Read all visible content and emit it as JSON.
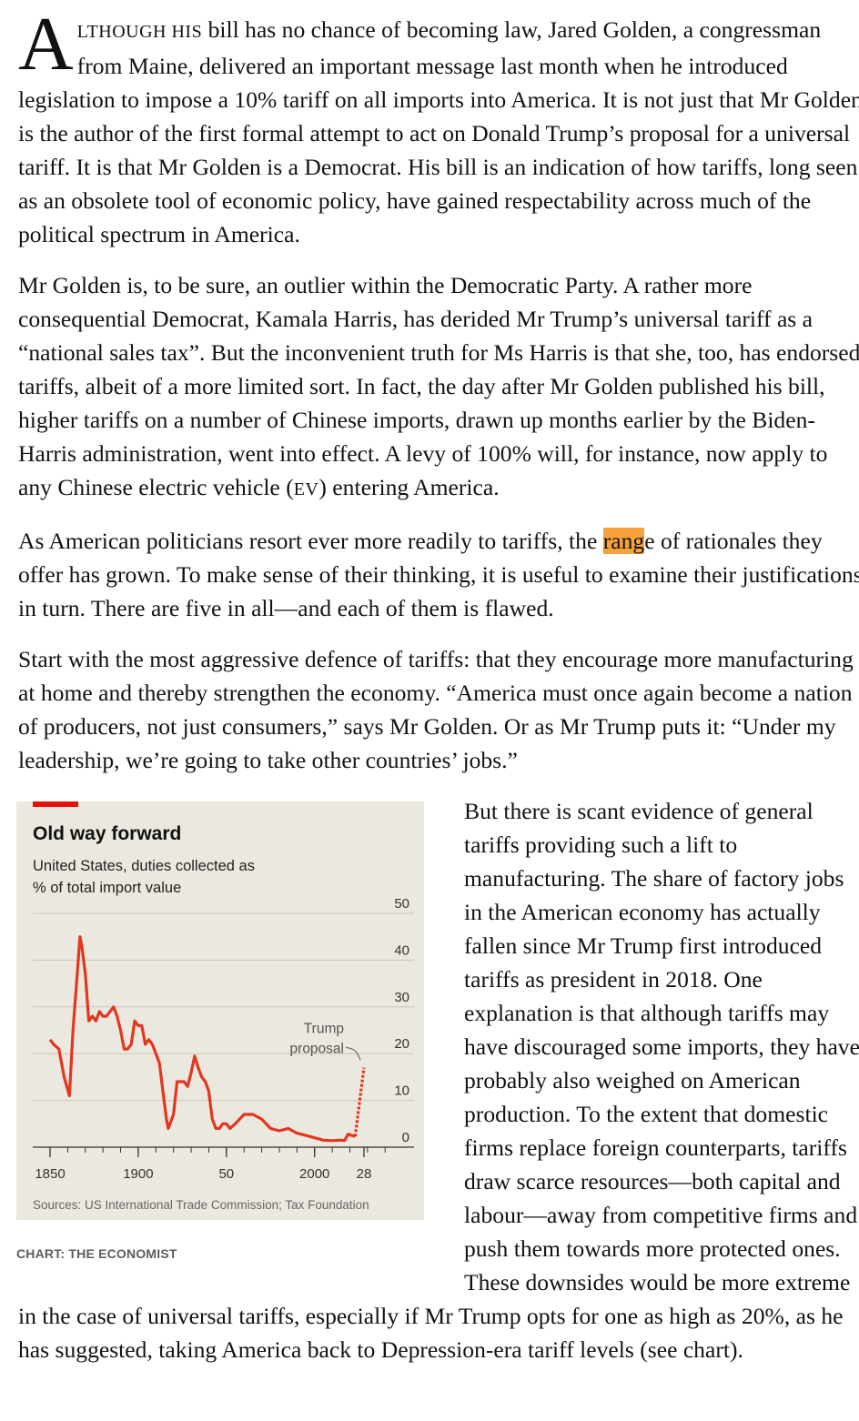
{
  "article": {
    "paragraphs": [
      {
        "parts": [
          {
            "text": "A",
            "style": "dropcap"
          },
          {
            "text": "LTHOUGH HIS",
            "style": "smallcaps"
          },
          {
            "text": " bill has no chance of becoming law, Jared Golden, a congressman from Maine, delivered an important message last month when he introduced legislation to impose a 10% tariff on all imports into America. It is not just that Mr Golden is the author of the first formal attempt to act on Donald Trump’s proposal for a universal tariff. It is that Mr Golden is a Democrat. His bill is an indication of how tariffs, long seen as an obsolete tool of economic policy, have gained respectability across much of the political spectrum in America."
          }
        ]
      },
      {
        "parts": [
          {
            "text": "Mr Golden is, to be sure, an outlier within the Democratic Party. A rather more consequential Democrat, Kamala Harris, has derided Mr Trump’s universal tariff as a “national sales tax”. But the inconvenient truth for Ms Harris is that she, too, has endorsed tariffs, albeit of a more limited sort. In fact, the day after Mr Golden published his bill, higher tariffs on a number of Chinese imports, drawn up months earlier by the Biden-Harris administration, went into effect. A levy of 100% will, for instance, now apply to any Chinese electric vehicle ("
          },
          {
            "text": "EV",
            "style": "smallcaps"
          },
          {
            "text": ") entering America."
          }
        ]
      },
      {
        "parts": [
          {
            "text": "As American politicians resort ever more readily to tariffs, the "
          },
          {
            "text": "rang",
            "style": "highlight"
          },
          {
            "text": "e of rationales they offer has grown. To make sense of their thinking, it is useful to examine their justifications in turn. There are five in all—and each of them is flawed."
          }
        ]
      },
      {
        "parts": [
          {
            "text": "Start with the most aggressive defence of tariffs: that they encourage more manufacturing at home and thereby strengthen the economy. “America must once again become a nation of producers, not just consumers,” says Mr Golden. Or as Mr Trump puts it: “Under my leadership, we’re going to take other countries’ jobs.”"
          }
        ]
      },
      {
        "parts": [
          {
            "text": "But there is scant evidence of general tariffs providing such a lift to manufacturing. The share of factory jobs in the American economy has actually fallen since Mr Trump first introduced tariffs as president in 2018. One explanation is that although tariffs may have discouraged some imports, they have probably also weighed on American production. To the extent that domestic firms replace foreign counterparts, tariffs draw scarce resources—both capital and labour—away from competitive firms and push them towards more protected ones. These downsides would be more extreme in the case of universal tariffs, especially if Mr Trump opts for one as high as 20%, as he has suggested, taking America back to Depression-era tariff levels (see chart)."
          }
        ]
      }
    ],
    "figure_before_paragraph": 4
  },
  "chart_data": {
    "type": "line",
    "title": "Old way forward",
    "subtitle": [
      "United States, duties collected as",
      "% of total import value"
    ],
    "source": "Sources: US International Trade Commission; Tax Foundation",
    "series": [
      {
        "color": "#e3361f",
        "dashed": false,
        "x": [
          1850,
          1852,
          1855,
          1858,
          1861,
          1863,
          1865,
          1867,
          1868,
          1870,
          1872,
          1874,
          1876,
          1878,
          1880,
          1882,
          1884,
          1886,
          1888,
          1890,
          1892,
          1894,
          1896,
          1898,
          1900,
          1902,
          1904,
          1906,
          1908,
          1910,
          1912,
          1914,
          1916,
          1917,
          1918,
          1920,
          1922,
          1924,
          1926,
          1928,
          1930,
          1932,
          1934,
          1936,
          1938,
          1940,
          1942,
          1944,
          1946,
          1948,
          1950,
          1952,
          1955,
          1960,
          1965,
          1970,
          1975,
          1980,
          1985,
          1990,
          1995,
          2000,
          2005,
          2010,
          2015,
          2017,
          2019,
          2021,
          2023
        ],
        "values": [
          23,
          22,
          21,
          15,
          11,
          25,
          35,
          45,
          43,
          37,
          27,
          28,
          27,
          29,
          28,
          28,
          29,
          30,
          28,
          25,
          21,
          21,
          22,
          27,
          26,
          26,
          22,
          23,
          22,
          20,
          18,
          12,
          6,
          4,
          5,
          7,
          14,
          14,
          14,
          13,
          16,
          19.5,
          17,
          15,
          14,
          12,
          6,
          4,
          4,
          5,
          5,
          4,
          5,
          7,
          7,
          6,
          4,
          3.5,
          4,
          3,
          2.5,
          2,
          1.5,
          1.4,
          1.5,
          1.4,
          2.8,
          2.5,
          2.3
        ]
      },
      {
        "color": "#e3361f",
        "dashed": true,
        "x": [
          2023,
          2028
        ],
        "values": [
          2.3,
          17
        ]
      }
    ],
    "annotation": {
      "lines": [
        "Trump",
        "proposal"
      ],
      "x": 2028,
      "value": 17
    },
    "xlim": [
      1841,
      2048
    ],
    "xticks": [
      1850,
      1900,
      {
        "value": 1950,
        "label": "50"
      },
      2000,
      {
        "value": 2028,
        "label": "28"
      }
    ],
    "xminor_step": 10,
    "ylim": [
      0,
      55
    ],
    "yticks": [
      0,
      10,
      20,
      30,
      40,
      50
    ],
    "grid": true,
    "accent_color": "#e3120b"
  },
  "credit": "CHART: THE ECONOMIST"
}
